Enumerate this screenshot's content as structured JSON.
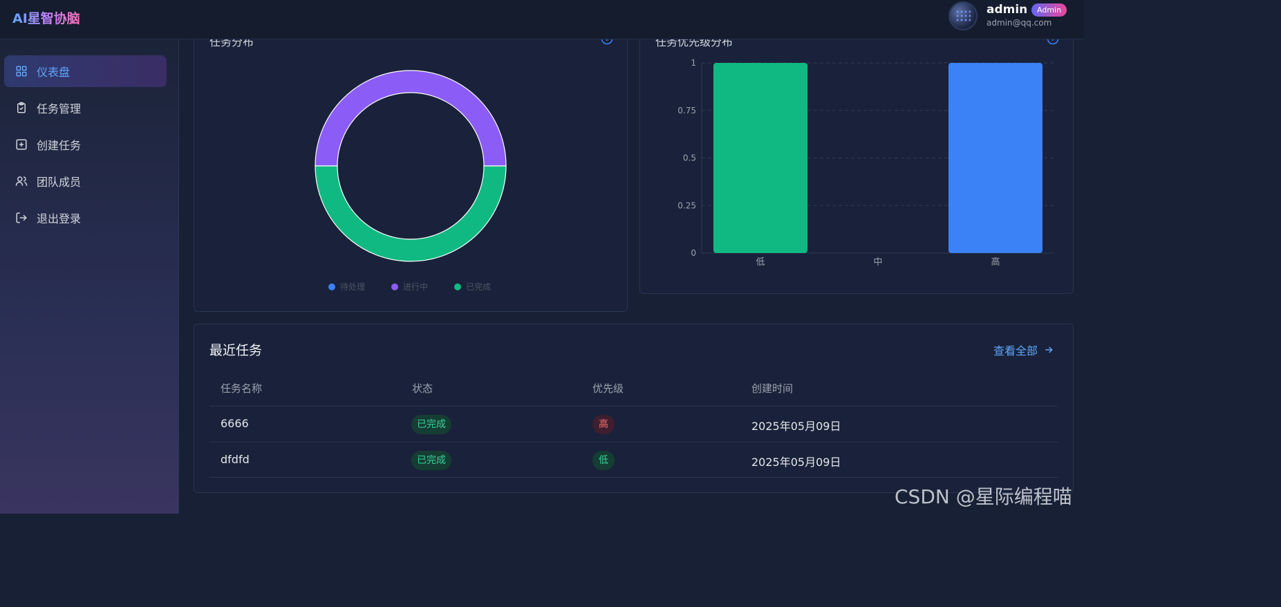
{
  "app": {
    "title": "AI星智协脑"
  },
  "user": {
    "name": "admin",
    "role": "Admin",
    "email": "admin@qq.com"
  },
  "sidebar": {
    "items": [
      {
        "label": "仪表盘",
        "icon": "dashboard-icon",
        "active": true
      },
      {
        "label": "任务管理",
        "icon": "clipboard-icon"
      },
      {
        "label": "创建任务",
        "icon": "plus-square-icon"
      },
      {
        "label": "团队成员",
        "icon": "users-icon"
      },
      {
        "label": "退出登录",
        "icon": "logout-icon"
      }
    ]
  },
  "status_chart": {
    "title": "任务分布",
    "legend": [
      "待处理",
      "进行中",
      "已完成"
    ]
  },
  "priority_chart": {
    "title": "任务优先级分布"
  },
  "chart_data": [
    {
      "type": "pie",
      "title": "任务分布",
      "categories": [
        "待处理",
        "进行中",
        "已完成"
      ],
      "values": [
        0,
        1,
        1
      ],
      "colors": [
        "#3b82f6",
        "#8b5cf6",
        "#10b981"
      ]
    },
    {
      "type": "bar",
      "title": "任务优先级分布",
      "categories": [
        "低",
        "中",
        "高"
      ],
      "values": [
        1,
        0,
        1
      ],
      "colors": [
        "#10b981",
        "#f59e0b",
        "#3b82f6"
      ],
      "ylim": [
        0,
        1
      ],
      "yticks": [
        "0",
        "0.25",
        "0.5",
        "0.75",
        "1"
      ],
      "grid": true
    }
  ],
  "recent": {
    "title": "最近任务",
    "view_all": "查看全部",
    "headers": [
      "任务名称",
      "状态",
      "优先级",
      "创建时间"
    ],
    "rows": [
      {
        "name": "6666",
        "status": "已完成",
        "priority": "高",
        "created": "2025年05月09日"
      },
      {
        "name": "dfdfd",
        "status": "已完成",
        "priority": "低",
        "created": "2025年05月09日"
      }
    ]
  },
  "watermark": "CSDN @星际编程喵"
}
